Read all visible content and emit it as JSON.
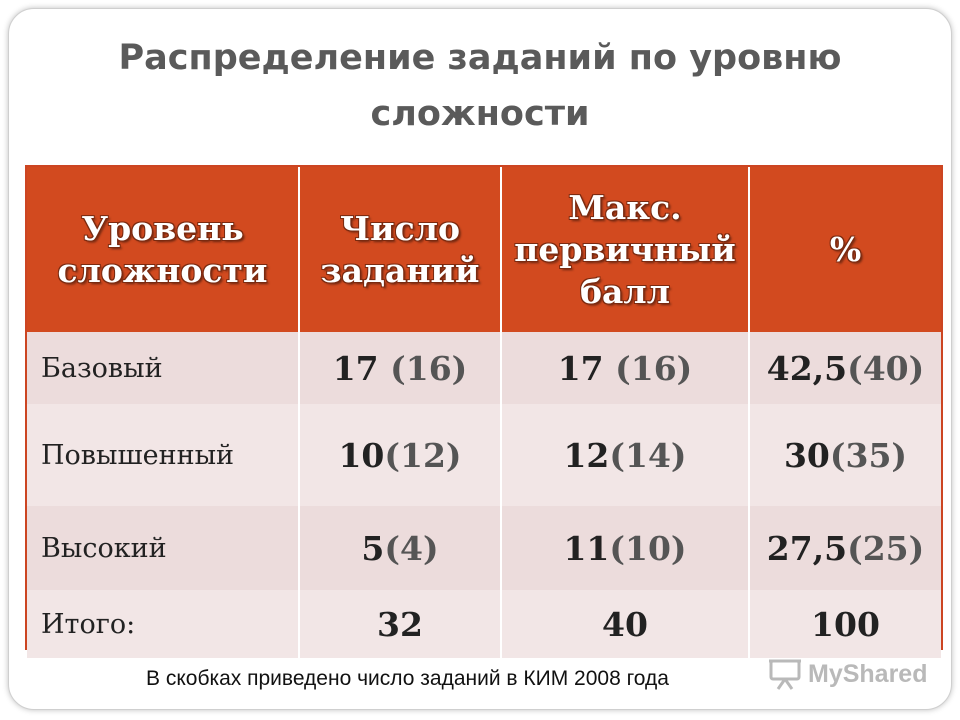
{
  "title": "Распределение заданий по уровню сложности",
  "table": {
    "headers": [
      "Уровень сложности",
      "Число заданий",
      "Макс. первичный балл",
      "%"
    ],
    "rows": [
      {
        "label": "Базовый",
        "tasks": "17",
        "tasks_prev": " (16)",
        "score": "17",
        "score_prev": " (16)",
        "pct": "42,5",
        "pct_prev": "(40)"
      },
      {
        "label": "Повышенный",
        "tasks": "10",
        "tasks_prev": "(12)",
        "score": "12",
        "score_prev": "(14)",
        "pct": "30",
        "pct_prev": "(35)"
      },
      {
        "label": "Высокий",
        "tasks": "5",
        "tasks_prev": "(4)",
        "score": "11",
        "score_prev": "(10)",
        "pct": "27,5",
        "pct_prev": "(25)"
      },
      {
        "label": "Итого:",
        "tasks": "32",
        "score": "40",
        "pct": "100"
      }
    ]
  },
  "footnote": "В скобках приведено число заданий в КИМ 2008 года",
  "logo_text": "MyShared"
}
